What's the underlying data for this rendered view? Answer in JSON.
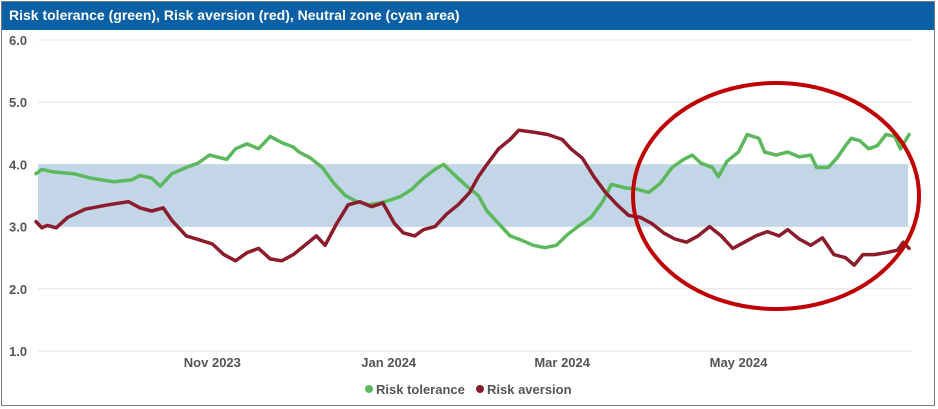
{
  "chart_data": {
    "type": "line",
    "title": "Risk tolerance (green), Risk aversion (red), Neutral zone (cyan area)",
    "ylim": [
      1.0,
      6.0
    ],
    "yticks": [
      "6.0",
      "5.0",
      "4.0",
      "3.0",
      "2.0",
      "1.0"
    ],
    "x_range": [
      "2023-09-01",
      "2024-06-30"
    ],
    "xticks": [
      {
        "date": "2023-11-01",
        "label": "Nov 2023"
      },
      {
        "date": "2024-01-01",
        "label": "Jan 2024"
      },
      {
        "date": "2024-03-01",
        "label": "Mar 2024"
      },
      {
        "date": "2024-05-01",
        "label": "May 2024"
      }
    ],
    "neutral_zone": [
      3.0,
      4.0
    ],
    "grid": "horizontal",
    "legend_position": "bottom",
    "colors": {
      "title_bar": "#0b5fa5",
      "risk_tolerance": "#5cb85c",
      "risk_aversion": "#8b1c2c",
      "neutral_zone": "#c2d6e8",
      "annotation": "#c00000"
    },
    "series": [
      {
        "name": "Risk tolerance",
        "color": "#5cb85c",
        "points": [
          [
            "2023-09-01",
            3.85
          ],
          [
            "2023-09-03",
            3.92
          ],
          [
            "2023-09-07",
            3.88
          ],
          [
            "2023-09-14",
            3.85
          ],
          [
            "2023-09-20",
            3.78
          ],
          [
            "2023-09-28",
            3.72
          ],
          [
            "2023-10-04",
            3.75
          ],
          [
            "2023-10-07",
            3.82
          ],
          [
            "2023-10-11",
            3.78
          ],
          [
            "2023-10-14",
            3.65
          ],
          [
            "2023-10-18",
            3.85
          ],
          [
            "2023-10-23",
            3.95
          ],
          [
            "2023-10-27",
            4.02
          ],
          [
            "2023-10-31",
            4.15
          ],
          [
            "2023-11-06",
            4.08
          ],
          [
            "2023-11-09",
            4.25
          ],
          [
            "2023-11-13",
            4.33
          ],
          [
            "2023-11-17",
            4.25
          ],
          [
            "2023-11-21",
            4.45
          ],
          [
            "2023-11-25",
            4.35
          ],
          [
            "2023-11-29",
            4.28
          ],
          [
            "2023-12-01",
            4.2
          ],
          [
            "2023-12-05",
            4.1
          ],
          [
            "2023-12-09",
            3.95
          ],
          [
            "2023-12-13",
            3.7
          ],
          [
            "2023-12-17",
            3.5
          ],
          [
            "2023-12-21",
            3.4
          ],
          [
            "2023-12-25",
            3.35
          ],
          [
            "2023-12-29",
            3.38
          ],
          [
            "2024-01-01",
            3.42
          ],
          [
            "2024-01-05",
            3.48
          ],
          [
            "2024-01-09",
            3.6
          ],
          [
            "2024-01-13",
            3.78
          ],
          [
            "2024-01-17",
            3.92
          ],
          [
            "2024-01-20",
            4.0
          ],
          [
            "2024-01-24",
            3.82
          ],
          [
            "2024-01-28",
            3.65
          ],
          [
            "2024-02-01",
            3.5
          ],
          [
            "2024-02-04",
            3.25
          ],
          [
            "2024-02-08",
            3.05
          ],
          [
            "2024-02-12",
            2.85
          ],
          [
            "2024-02-16",
            2.78
          ],
          [
            "2024-02-20",
            2.7
          ],
          [
            "2024-02-24",
            2.66
          ],
          [
            "2024-02-28",
            2.7
          ],
          [
            "2024-03-03",
            2.88
          ],
          [
            "2024-03-07",
            3.02
          ],
          [
            "2024-03-11",
            3.15
          ],
          [
            "2024-03-15",
            3.4
          ],
          [
            "2024-03-18",
            3.68
          ],
          [
            "2024-03-23",
            3.62
          ],
          [
            "2024-03-27",
            3.6
          ],
          [
            "2024-03-31",
            3.55
          ],
          [
            "2024-04-04",
            3.7
          ],
          [
            "2024-04-08",
            3.95
          ],
          [
            "2024-04-12",
            4.08
          ],
          [
            "2024-04-15",
            4.15
          ],
          [
            "2024-04-18",
            4.02
          ],
          [
            "2024-04-22",
            3.95
          ],
          [
            "2024-04-24",
            3.8
          ],
          [
            "2024-04-27",
            4.05
          ],
          [
            "2024-05-01",
            4.2
          ],
          [
            "2024-05-04",
            4.48
          ],
          [
            "2024-05-08",
            4.42
          ],
          [
            "2024-05-10",
            4.2
          ],
          [
            "2024-05-14",
            4.15
          ],
          [
            "2024-05-18",
            4.2
          ],
          [
            "2024-05-22",
            4.12
          ],
          [
            "2024-05-26",
            4.15
          ],
          [
            "2024-05-28",
            3.95
          ],
          [
            "2024-06-01",
            3.95
          ],
          [
            "2024-06-04",
            4.1
          ],
          [
            "2024-06-07",
            4.3
          ],
          [
            "2024-06-09",
            4.42
          ],
          [
            "2024-06-12",
            4.38
          ],
          [
            "2024-06-15",
            4.25
          ],
          [
            "2024-06-18",
            4.3
          ],
          [
            "2024-06-21",
            4.48
          ],
          [
            "2024-06-24",
            4.45
          ],
          [
            "2024-06-26",
            4.25
          ],
          [
            "2024-06-29",
            4.48
          ]
        ]
      },
      {
        "name": "Risk aversion",
        "color": "#8b1c2c",
        "points": [
          [
            "2023-09-01",
            3.08
          ],
          [
            "2023-09-03",
            2.98
          ],
          [
            "2023-09-05",
            3.02
          ],
          [
            "2023-09-08",
            2.98
          ],
          [
            "2023-09-12",
            3.15
          ],
          [
            "2023-09-18",
            3.28
          ],
          [
            "2023-09-26",
            3.35
          ],
          [
            "2023-10-03",
            3.4
          ],
          [
            "2023-10-07",
            3.3
          ],
          [
            "2023-10-11",
            3.25
          ],
          [
            "2023-10-15",
            3.3
          ],
          [
            "2023-10-18",
            3.1
          ],
          [
            "2023-10-23",
            2.85
          ],
          [
            "2023-10-28",
            2.78
          ],
          [
            "2023-11-01",
            2.72
          ],
          [
            "2023-11-05",
            2.55
          ],
          [
            "2023-11-09",
            2.45
          ],
          [
            "2023-11-13",
            2.58
          ],
          [
            "2023-11-17",
            2.65
          ],
          [
            "2023-11-21",
            2.48
          ],
          [
            "2023-11-25",
            2.45
          ],
          [
            "2023-11-29",
            2.55
          ],
          [
            "2023-12-03",
            2.7
          ],
          [
            "2023-12-07",
            2.85
          ],
          [
            "2023-12-10",
            2.7
          ],
          [
            "2023-12-14",
            3.05
          ],
          [
            "2023-12-18",
            3.35
          ],
          [
            "2023-12-22",
            3.4
          ],
          [
            "2023-12-26",
            3.32
          ],
          [
            "2023-12-30",
            3.38
          ],
          [
            "2024-01-03",
            3.05
          ],
          [
            "2024-01-06",
            2.9
          ],
          [
            "2024-01-10",
            2.85
          ],
          [
            "2024-01-13",
            2.95
          ],
          [
            "2024-01-17",
            3.0
          ],
          [
            "2024-01-21",
            3.2
          ],
          [
            "2024-01-25",
            3.35
          ],
          [
            "2024-01-29",
            3.55
          ],
          [
            "2024-02-01",
            3.8
          ],
          [
            "2024-02-04",
            4.0
          ],
          [
            "2024-02-08",
            4.25
          ],
          [
            "2024-02-12",
            4.4
          ],
          [
            "2024-02-15",
            4.55
          ],
          [
            "2024-02-20",
            4.52
          ],
          [
            "2024-02-25",
            4.48
          ],
          [
            "2024-03-01",
            4.4
          ],
          [
            "2024-03-04",
            4.25
          ],
          [
            "2024-03-08",
            4.1
          ],
          [
            "2024-03-12",
            3.8
          ],
          [
            "2024-03-16",
            3.55
          ],
          [
            "2024-03-20",
            3.35
          ],
          [
            "2024-03-24",
            3.18
          ],
          [
            "2024-03-28",
            3.15
          ],
          [
            "2024-04-01",
            3.05
          ],
          [
            "2024-04-05",
            2.9
          ],
          [
            "2024-04-09",
            2.8
          ],
          [
            "2024-04-13",
            2.75
          ],
          [
            "2024-04-17",
            2.85
          ],
          [
            "2024-04-21",
            3.0
          ],
          [
            "2024-04-25",
            2.85
          ],
          [
            "2024-04-29",
            2.65
          ],
          [
            "2024-05-03",
            2.75
          ],
          [
            "2024-05-07",
            2.85
          ],
          [
            "2024-05-11",
            2.92
          ],
          [
            "2024-05-15",
            2.85
          ],
          [
            "2024-05-18",
            2.95
          ],
          [
            "2024-05-22",
            2.8
          ],
          [
            "2024-05-26",
            2.7
          ],
          [
            "2024-05-30",
            2.82
          ],
          [
            "2024-06-03",
            2.55
          ],
          [
            "2024-06-07",
            2.5
          ],
          [
            "2024-06-10",
            2.38
          ],
          [
            "2024-06-13",
            2.55
          ],
          [
            "2024-06-17",
            2.55
          ],
          [
            "2024-06-21",
            2.58
          ],
          [
            "2024-06-25",
            2.62
          ],
          [
            "2024-06-27",
            2.75
          ],
          [
            "2024-06-29",
            2.65
          ]
        ]
      }
    ]
  },
  "legend": {
    "items": [
      {
        "label": "Risk tolerance",
        "color": "#5cb85c"
      },
      {
        "label": "Risk aversion",
        "color": "#8b1c2c"
      }
    ]
  }
}
